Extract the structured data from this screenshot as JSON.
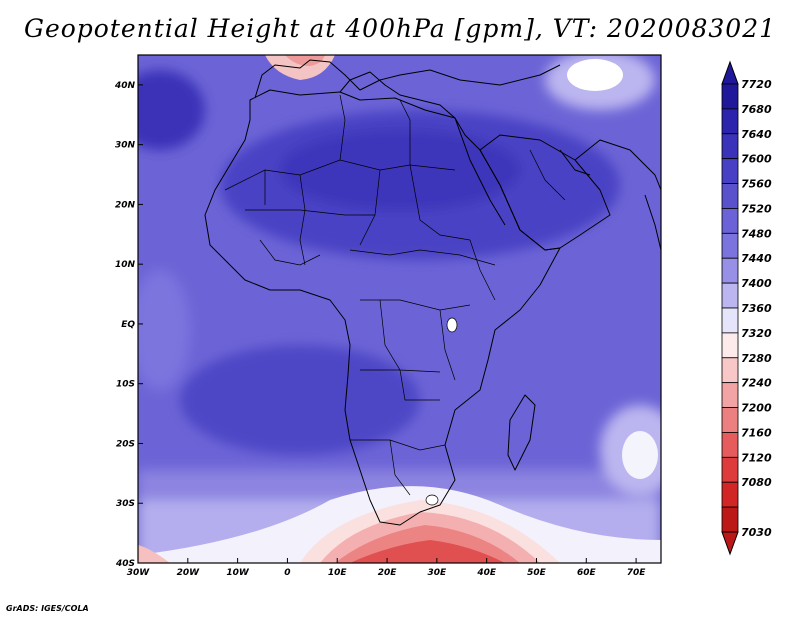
{
  "title": "Geopotential Height at 400hPa [gpm], VT: 2020083021",
  "credit": "GrADS: IGES/COLA",
  "map": {
    "projection": "latlon",
    "lon_range": [
      -30,
      75
    ],
    "lat_range": [
      -40,
      45
    ],
    "lon_ticks": [
      "30W",
      "20W",
      "10W",
      "0",
      "10E",
      "20E",
      "30E",
      "40E",
      "50E",
      "60E",
      "70E"
    ],
    "lat_ticks": [
      "40S",
      "30S",
      "20S",
      "10S",
      "EQ",
      "10N",
      "20N",
      "30N",
      "40N"
    ],
    "background_level_color": "#6e64d8"
  },
  "colorbar": {
    "levels": [
      "7720",
      "7680",
      "7640",
      "7600",
      "7560",
      "7520",
      "7480",
      "7440",
      "7400",
      "7360",
      "7320",
      "7280",
      "7240",
      "7200",
      "7160",
      "7120",
      "7080",
      "7030"
    ],
    "colors": [
      "#20189a",
      "#2c24ac",
      "#3a32b8",
      "#4840c4",
      "#5a52cc",
      "#6a62d6",
      "#7c74de",
      "#9890e6",
      "#bcb6f0",
      "#e6e4fa",
      "#fdeaea",
      "#f8c8c8",
      "#f2a4a4",
      "#ec8080",
      "#e65c5c",
      "#de3c3c",
      "#d22626",
      "#bc1818"
    ]
  }
}
